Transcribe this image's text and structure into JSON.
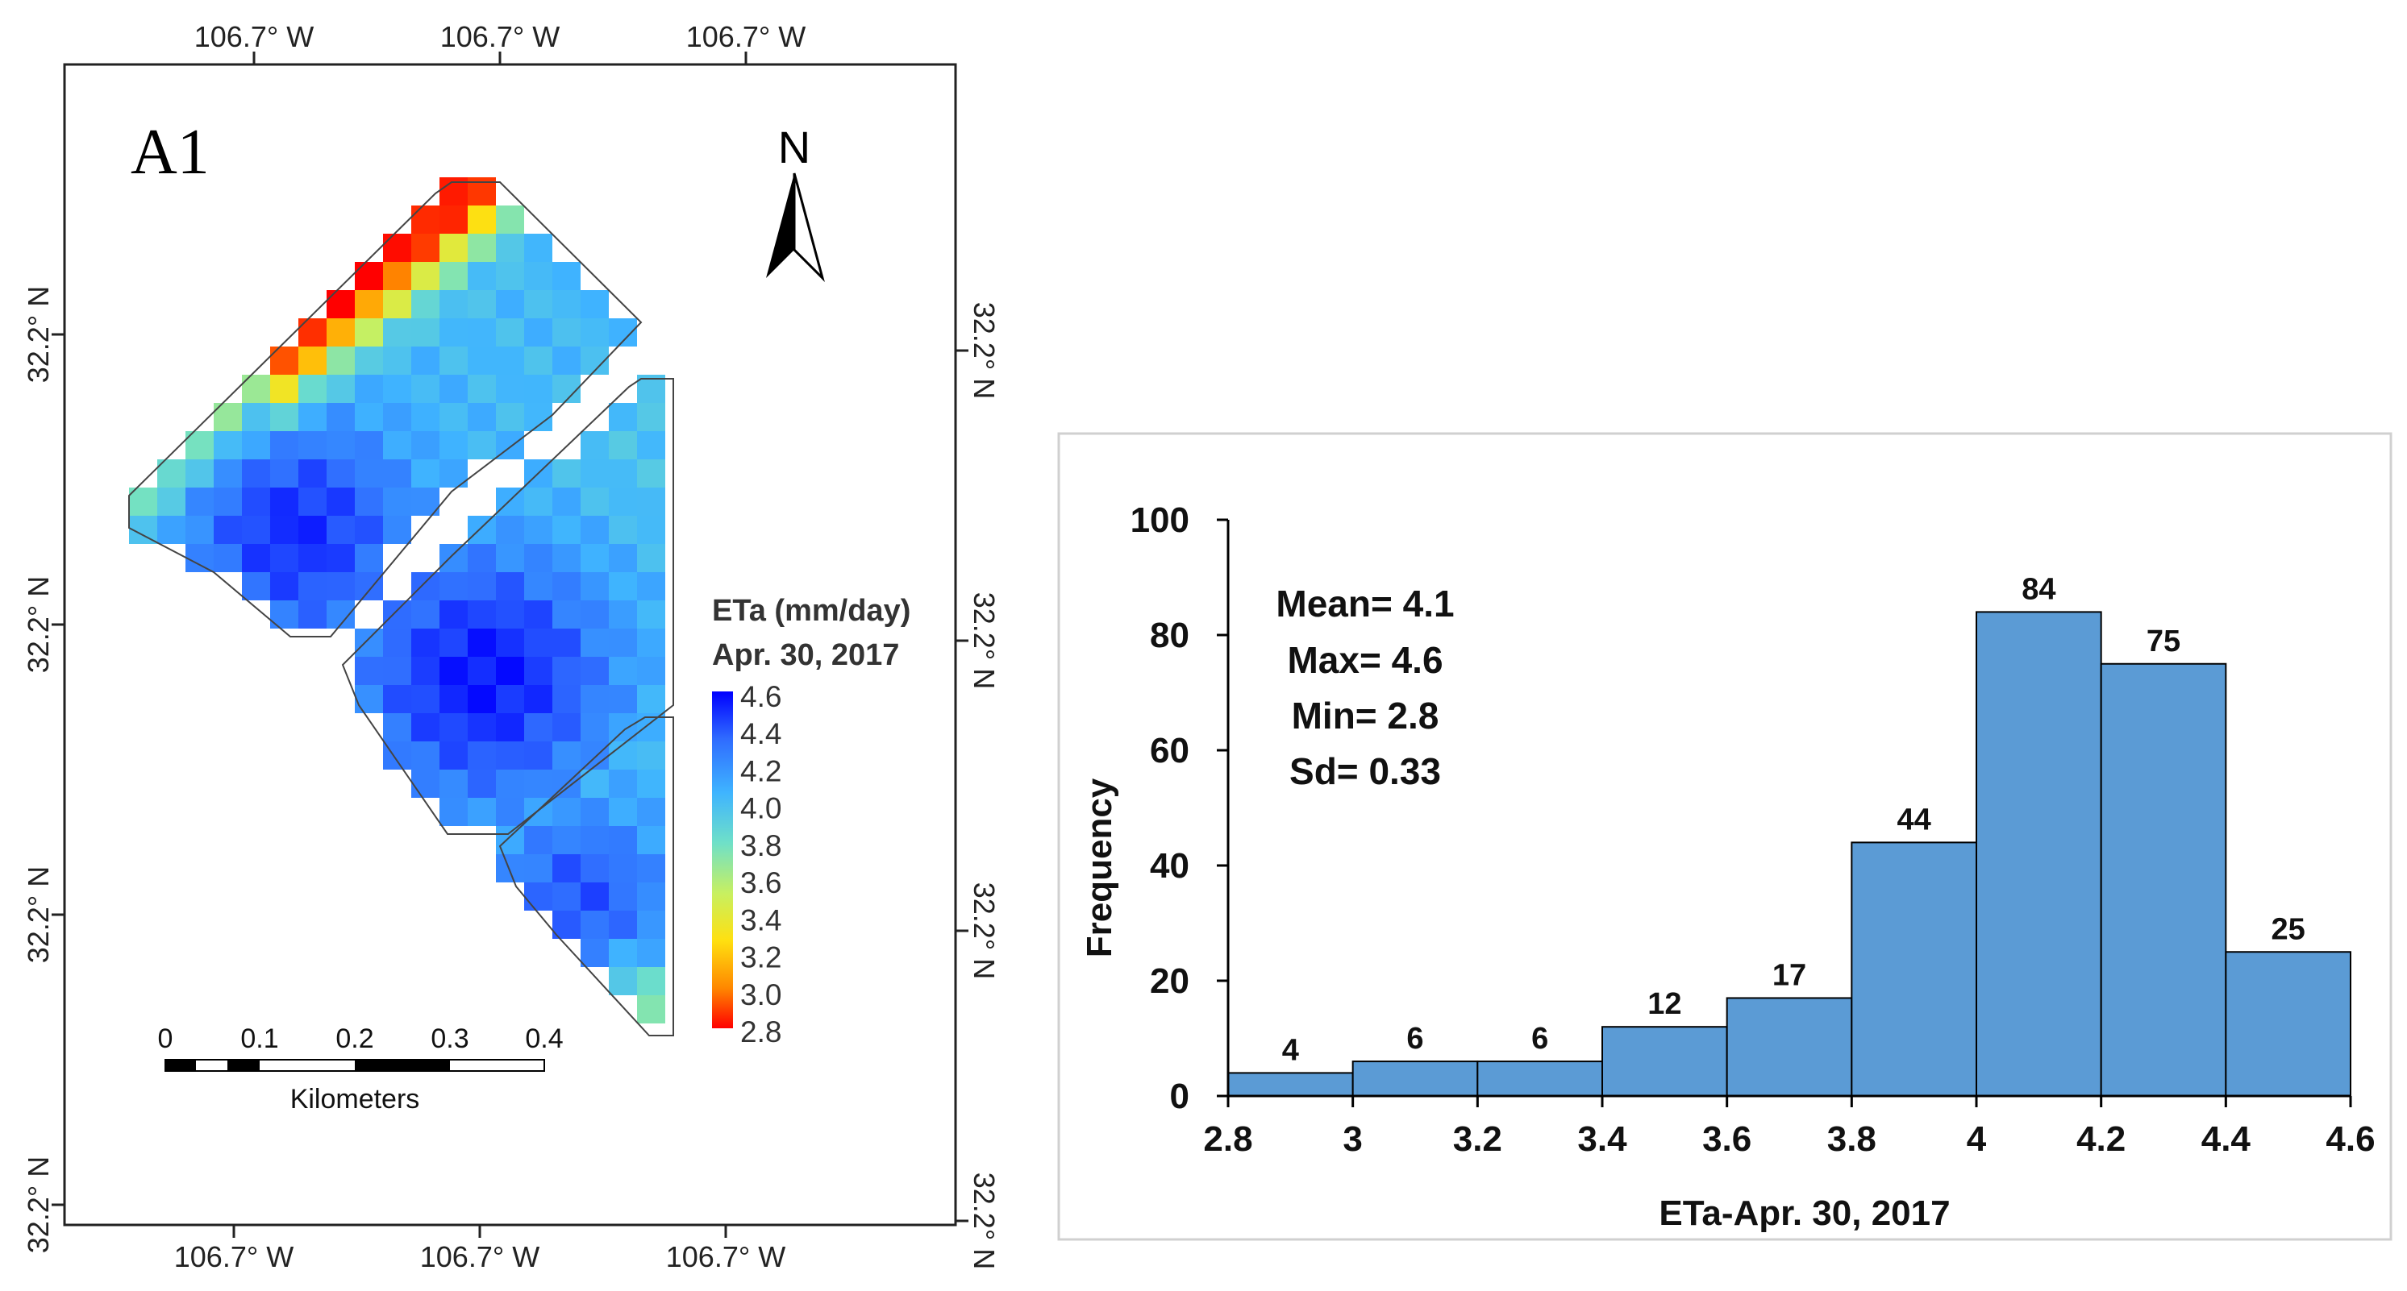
{
  "map": {
    "panel_label": "A1",
    "north_label": "N",
    "top_ticks": [
      "106.7° W",
      "106.7° W",
      "106.7° W"
    ],
    "bottom_ticks": [
      "106.7° W",
      "106.7° W",
      "106.7° W"
    ],
    "left_ticks": [
      "32.2° N",
      "32.2° N",
      "32.2° N",
      "32.2° N"
    ],
    "right_ticks": [
      "32.2° N",
      "32.2° N",
      "32.2° N",
      "32.2° N"
    ],
    "legend": {
      "title_line1": "ETa (mm/day)",
      "title_line2": "Apr. 30, 2017",
      "ticks": [
        "4.6",
        "4.4",
        "4.2",
        "4.0",
        "3.8",
        "3.6",
        "3.4",
        "3.2",
        "3.0",
        "2.8"
      ],
      "colors": [
        "#0000ff",
        "#2f6bff",
        "#3fb4ff",
        "#6fe0c8",
        "#c8f060",
        "#ffe010",
        "#ff8800",
        "#ff0000"
      ]
    },
    "scale_bar": {
      "ticks": [
        "0",
        "0.1",
        "0.2",
        "0.3",
        "0.4"
      ],
      "unit": "Kilometers"
    }
  },
  "chart_data": {
    "type": "bar",
    "subtype": "histogram",
    "bin_edges": [
      2.8,
      3.0,
      3.2,
      3.4,
      3.6,
      3.8,
      4.0,
      4.2,
      4.4,
      4.6
    ],
    "values": [
      4,
      6,
      6,
      12,
      17,
      44,
      84,
      75,
      25
    ],
    "data_labels": [
      "4",
      "6",
      "6",
      "12",
      "17",
      "44",
      "84",
      "75",
      "25"
    ],
    "x_tick_labels": [
      "2.8",
      "3",
      "3.2",
      "3.4",
      "3.6",
      "3.8",
      "4",
      "4.2",
      "4.4",
      "4.6"
    ],
    "y_tick_labels": [
      "0",
      "20",
      "40",
      "60",
      "80",
      "100"
    ],
    "xlabel": "ETa-Apr. 30, 2017",
    "ylabel": "Frequency",
    "xlim": [
      2.8,
      4.6
    ],
    "ylim": [
      0,
      100
    ],
    "bar_color": "#5b9bd5",
    "grid": false,
    "stats": [
      "Mean= 4.1",
      "Max= 4.6",
      "Min= 2.8",
      "Sd= 0.33"
    ]
  }
}
